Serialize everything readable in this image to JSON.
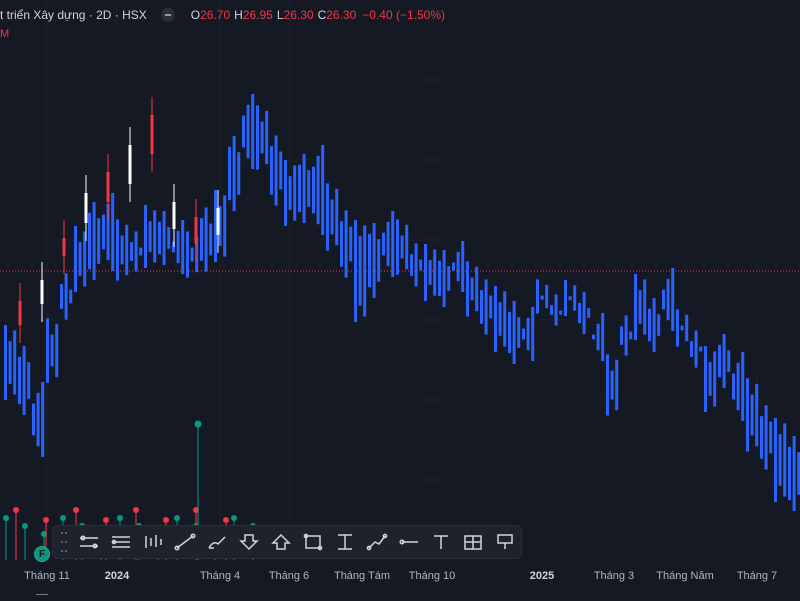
{
  "header": {
    "title": "t triển Xây dựng · 2D · HSX",
    "o_label": "O",
    "o_value": "26.70",
    "h_label": "H",
    "h_value": "26.95",
    "l_label": "L",
    "l_value": "26.30",
    "c_label": "C",
    "c_value": "26.30",
    "change": "−0.40 (−1.50%)"
  },
  "sublabel": "M",
  "colors": {
    "up_bar": "#2962ff",
    "candle_up": "#ffffff",
    "candle_down": "#f23645",
    "price_line": "#f23645",
    "volume_up": "#089981",
    "volume_down": "#f23645",
    "background": "#151924"
  },
  "xaxis": {
    "labels": [
      {
        "text": "Tháng 11",
        "year": false
      },
      {
        "text": "2024",
        "year": true
      },
      {
        "text": "Tháng 4",
        "year": false
      },
      {
        "text": "Tháng 6",
        "year": false
      },
      {
        "text": "Tháng Tám",
        "year": false
      },
      {
        "text": "Tháng 10",
        "year": false
      },
      {
        "text": "2025",
        "year": true
      },
      {
        "text": "Tháng 3",
        "year": false
      },
      {
        "text": "Tháng Năm",
        "year": false
      },
      {
        "text": "Tháng 7",
        "year": false
      }
    ]
  },
  "toolbar": {
    "tools": [
      "drag-grip",
      "ruler-tool",
      "parallel-lines-tool",
      "bars-tool",
      "line-tool",
      "brush-tool",
      "arrow-down-tool",
      "arrow-up-tool",
      "rectangle-tool",
      "price-range-tool",
      "path-tool",
      "horizontal-ray-tool",
      "text-tool",
      "table-tool",
      "flag-tool"
    ]
  },
  "badges": {
    "f_badge": "F"
  },
  "chart_data": {
    "type": "ohlc",
    "price_line": 26.3,
    "series": [
      {
        "name": "bars",
        "points": [
          [
            0,
            24.5,
            22.0
          ],
          [
            1,
            23.8,
            21.5
          ],
          [
            2,
            22.6,
            20.1
          ],
          [
            3,
            24.9,
            22.4
          ],
          [
            4,
            26.4,
            24.5
          ],
          [
            5,
            27.8,
            25.6
          ],
          [
            6,
            28.6,
            26.0
          ],
          [
            7,
            28.9,
            26.3
          ],
          [
            8,
            28.2,
            25.8
          ],
          [
            9,
            27.8,
            26.1
          ],
          [
            10,
            28.5,
            26.4
          ],
          [
            11,
            28.3,
            26.5
          ],
          [
            12,
            28.0,
            26.2
          ],
          [
            13,
            27.8,
            25.9
          ],
          [
            14,
            28.6,
            26.1
          ],
          [
            15,
            29.0,
            26.6
          ],
          [
            16,
            30.8,
            28.3
          ],
          [
            17,
            32.2,
            29.7
          ],
          [
            18,
            32.0,
            29.5
          ],
          [
            19,
            31.0,
            28.3
          ],
          [
            20,
            30.0,
            27.8
          ],
          [
            21,
            30.2,
            27.9
          ],
          [
            22,
            30.5,
            27.5
          ],
          [
            23,
            29.4,
            26.8
          ],
          [
            24,
            28.5,
            25.9
          ],
          [
            25,
            28.0,
            24.6
          ],
          [
            26,
            27.9,
            25.4
          ],
          [
            27,
            28.3,
            26.1
          ],
          [
            28,
            28.2,
            26.0
          ],
          [
            29,
            27.4,
            25.6
          ],
          [
            30,
            27.2,
            25.3
          ],
          [
            31,
            27.0,
            25.1
          ],
          [
            32,
            27.3,
            25.6
          ],
          [
            33,
            26.8,
            24.6
          ],
          [
            34,
            26.2,
            24.0
          ],
          [
            35,
            25.8,
            23.6
          ],
          [
            36,
            25.3,
            23.2
          ],
          [
            37,
            25.1,
            23.3
          ],
          [
            38,
            26.2,
            24.7
          ],
          [
            39,
            25.7,
            24.3
          ],
          [
            40,
            26.0,
            24.8
          ],
          [
            41,
            25.6,
            24.2
          ],
          [
            42,
            24.9,
            23.3
          ],
          [
            43,
            23.7,
            21.3
          ],
          [
            44,
            25.0,
            23.3
          ],
          [
            45,
            26.2,
            24.0
          ],
          [
            46,
            25.4,
            23.6
          ],
          [
            47,
            26.4,
            24.3
          ],
          [
            48,
            25.2,
            23.6
          ],
          [
            49,
            24.5,
            22.9
          ],
          [
            50,
            23.8,
            21.6
          ],
          [
            51,
            24.2,
            22.4
          ],
          [
            52,
            23.6,
            21.3
          ],
          [
            53,
            22.9,
            20.1
          ],
          [
            54,
            22.0,
            19.5
          ],
          [
            55,
            21.4,
            18.6
          ],
          [
            56,
            20.8,
            18.3
          ]
        ]
      },
      {
        "name": "candles",
        "points": [
          [
            0,
            25.3,
            24.5
          ],
          [
            1,
            26.0,
            25.2
          ],
          [
            2,
            27.4,
            26.8
          ],
          [
            3,
            28.9,
            27.9
          ],
          [
            4,
            29.6,
            28.6
          ],
          [
            5,
            30.5,
            29.2
          ],
          [
            6,
            31.5,
            30.2
          ],
          [
            7,
            28.6,
            27.7
          ],
          [
            8,
            28.1,
            27.2
          ],
          [
            9,
            28.4,
            27.5
          ]
        ]
      }
    ],
    "volume": {
      "up_markers": 14,
      "down_markers": 8,
      "spike_marker": "up"
    }
  }
}
